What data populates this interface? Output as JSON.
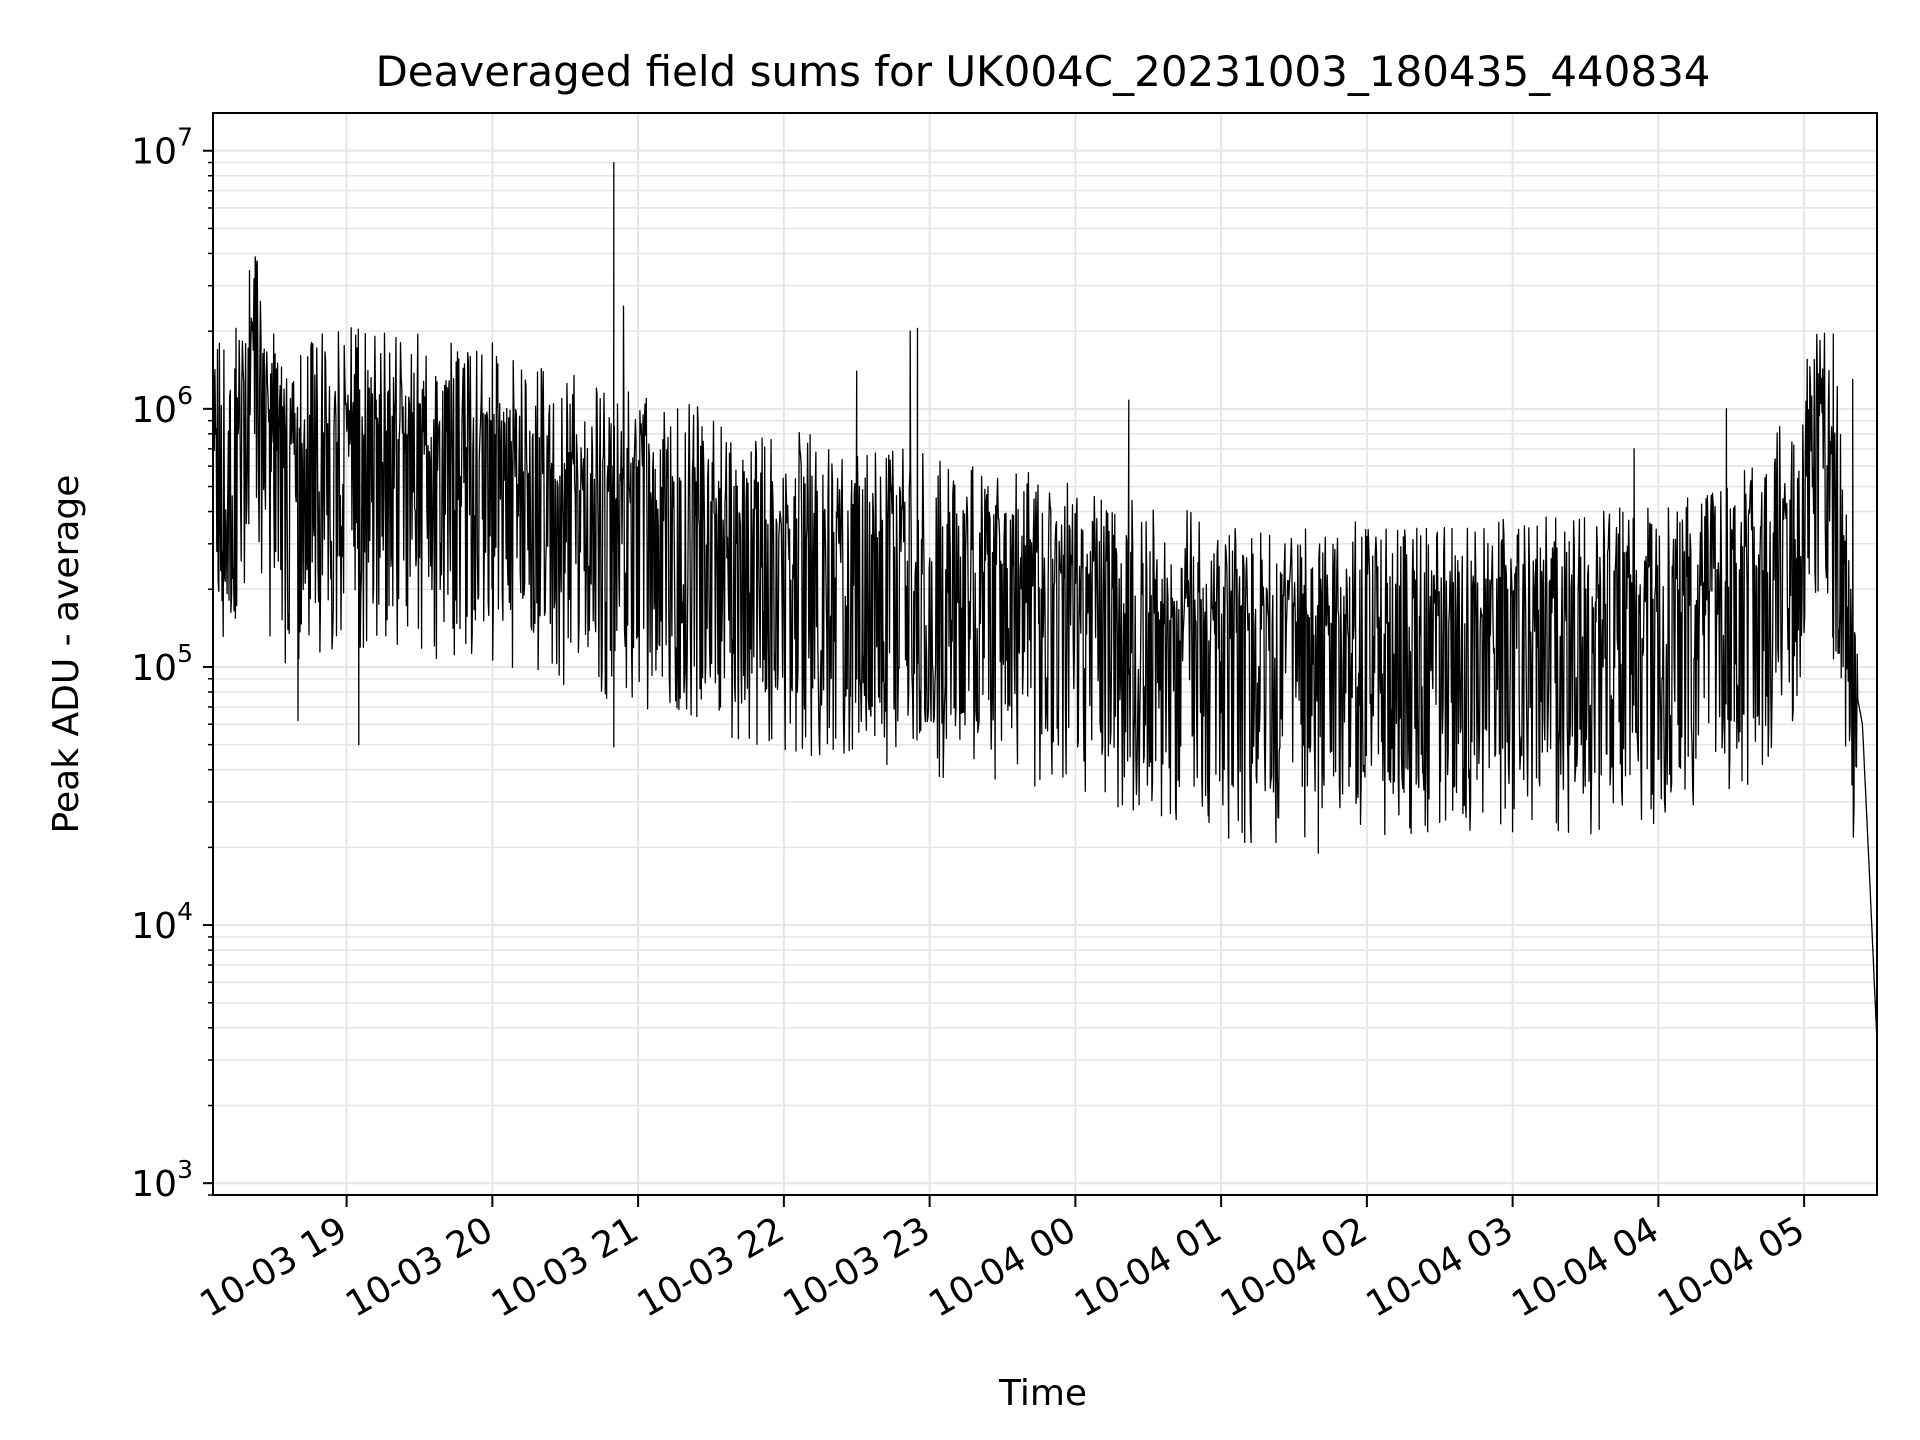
{
  "chart_data": {
    "type": "line",
    "title": "Deaveraged field sums for UK004C_20231003_180435_440834",
    "xlabel": "Time",
    "ylabel": "Peak ADU - average",
    "yscale": "log",
    "ylim": [
      900,
      14000000
    ],
    "xlim": [
      "2023-10-03 18:05",
      "2023-10-04 05:30"
    ],
    "grid": true,
    "line_color": "#000000",
    "grid_color": "#e6e6e6",
    "x_ticks": [
      {
        "t": "2023-10-03 19:00",
        "label": "10-03 19"
      },
      {
        "t": "2023-10-03 20:00",
        "label": "10-03 20"
      },
      {
        "t": "2023-10-03 21:00",
        "label": "10-03 21"
      },
      {
        "t": "2023-10-03 22:00",
        "label": "10-03 22"
      },
      {
        "t": "2023-10-03 23:00",
        "label": "10-03 23"
      },
      {
        "t": "2023-10-04 00:00",
        "label": "10-04 00"
      },
      {
        "t": "2023-10-04 01:00",
        "label": "10-04 01"
      },
      {
        "t": "2023-10-04 02:00",
        "label": "10-04 02"
      },
      {
        "t": "2023-10-04 03:00",
        "label": "10-04 03"
      },
      {
        "t": "2023-10-04 04:00",
        "label": "10-04 04"
      },
      {
        "t": "2023-10-04 05:00",
        "label": "10-04 05"
      }
    ],
    "y_ticks": [
      {
        "value": 1000,
        "base": "10",
        "exp": "3"
      },
      {
        "value": 10000,
        "base": "10",
        "exp": "4"
      },
      {
        "value": 100000,
        "base": "10",
        "exp": "5"
      },
      {
        "value": 1000000,
        "base": "10",
        "exp": "6"
      },
      {
        "value": 10000000,
        "base": "10",
        "exp": "7"
      }
    ],
    "series": [
      {
        "approximate": true,
        "baseline": [
          [
            "2023-10-03 18:05",
            480000
          ],
          [
            "2023-10-03 18:15",
            520000
          ],
          [
            "2023-10-03 18:22",
            1100000
          ],
          [
            "2023-10-03 18:30",
            450000
          ],
          [
            "2023-10-03 19:00",
            520000
          ],
          [
            "2023-10-03 19:30",
            500000
          ],
          [
            "2023-10-03 20:00",
            420000
          ],
          [
            "2023-10-03 20:30",
            350000
          ],
          [
            "2023-10-03 21:00",
            300000
          ],
          [
            "2023-10-03 21:30",
            250000
          ],
          [
            "2023-10-03 22:00",
            210000
          ],
          [
            "2023-10-03 22:30",
            190000
          ],
          [
            "2023-10-03 23:00",
            170000
          ],
          [
            "2023-10-03 23:30",
            150000
          ],
          [
            "2023-10-04 00:00",
            130000
          ],
          [
            "2023-10-04 00:30",
            110000
          ],
          [
            "2023-10-04 01:00",
            95000
          ],
          [
            "2023-10-04 01:30",
            90000
          ],
          [
            "2023-10-04 02:00",
            92000
          ],
          [
            "2023-10-04 02:30",
            90000
          ],
          [
            "2023-10-04 03:00",
            95000
          ],
          [
            "2023-10-04 03:30",
            100000
          ],
          [
            "2023-10-04 04:00",
            110000
          ],
          [
            "2023-10-04 04:30",
            130000
          ],
          [
            "2023-10-04 04:55",
            250000
          ],
          [
            "2023-10-04 05:05",
            550000
          ],
          [
            "2023-10-04 05:12",
            450000
          ],
          [
            "2023-10-04 05:18",
            120000
          ],
          [
            "2023-10-04 05:24",
            60000
          ],
          [
            "2023-10-04 05:27",
            15000
          ],
          [
            "2023-10-04 05:30",
            3500
          ]
        ],
        "spikes": [
          [
            "2023-10-03 20:50",
            9000000
          ],
          [
            "2023-10-03 20:50",
            4700000
          ],
          [
            "2023-10-03 20:54",
            2500000
          ],
          [
            "2023-10-03 22:55",
            2050000
          ],
          [
            "2023-10-03 22:52",
            2000000
          ],
          [
            "2023-10-03 18:30",
            1950000
          ],
          [
            "2023-10-03 18:50",
            1950000
          ],
          [
            "2023-10-03 20:00",
            1800000
          ],
          [
            "2023-10-03 22:30",
            1400000
          ],
          [
            "2023-10-04 00:22",
            1080000
          ],
          [
            "2023-10-04 03:50",
            700000
          ],
          [
            "2023-10-04 05:12",
            1950000
          ],
          [
            "2023-10-04 05:20",
            1300000
          ],
          [
            "2023-10-04 04:28",
            1000000
          ],
          [
            "2023-10-03 18:40",
            62000
          ],
          [
            "2023-10-03 19:05",
            50000
          ],
          [
            "2023-10-03 20:50",
            49000
          ],
          [
            "2023-10-04 00:55",
            25000
          ],
          [
            "2023-10-04 01:40",
            19000
          ],
          [
            "2023-10-04 02:30",
            25000
          ],
          [
            "2023-10-04 03:00",
            23000
          ]
        ]
      }
    ]
  }
}
